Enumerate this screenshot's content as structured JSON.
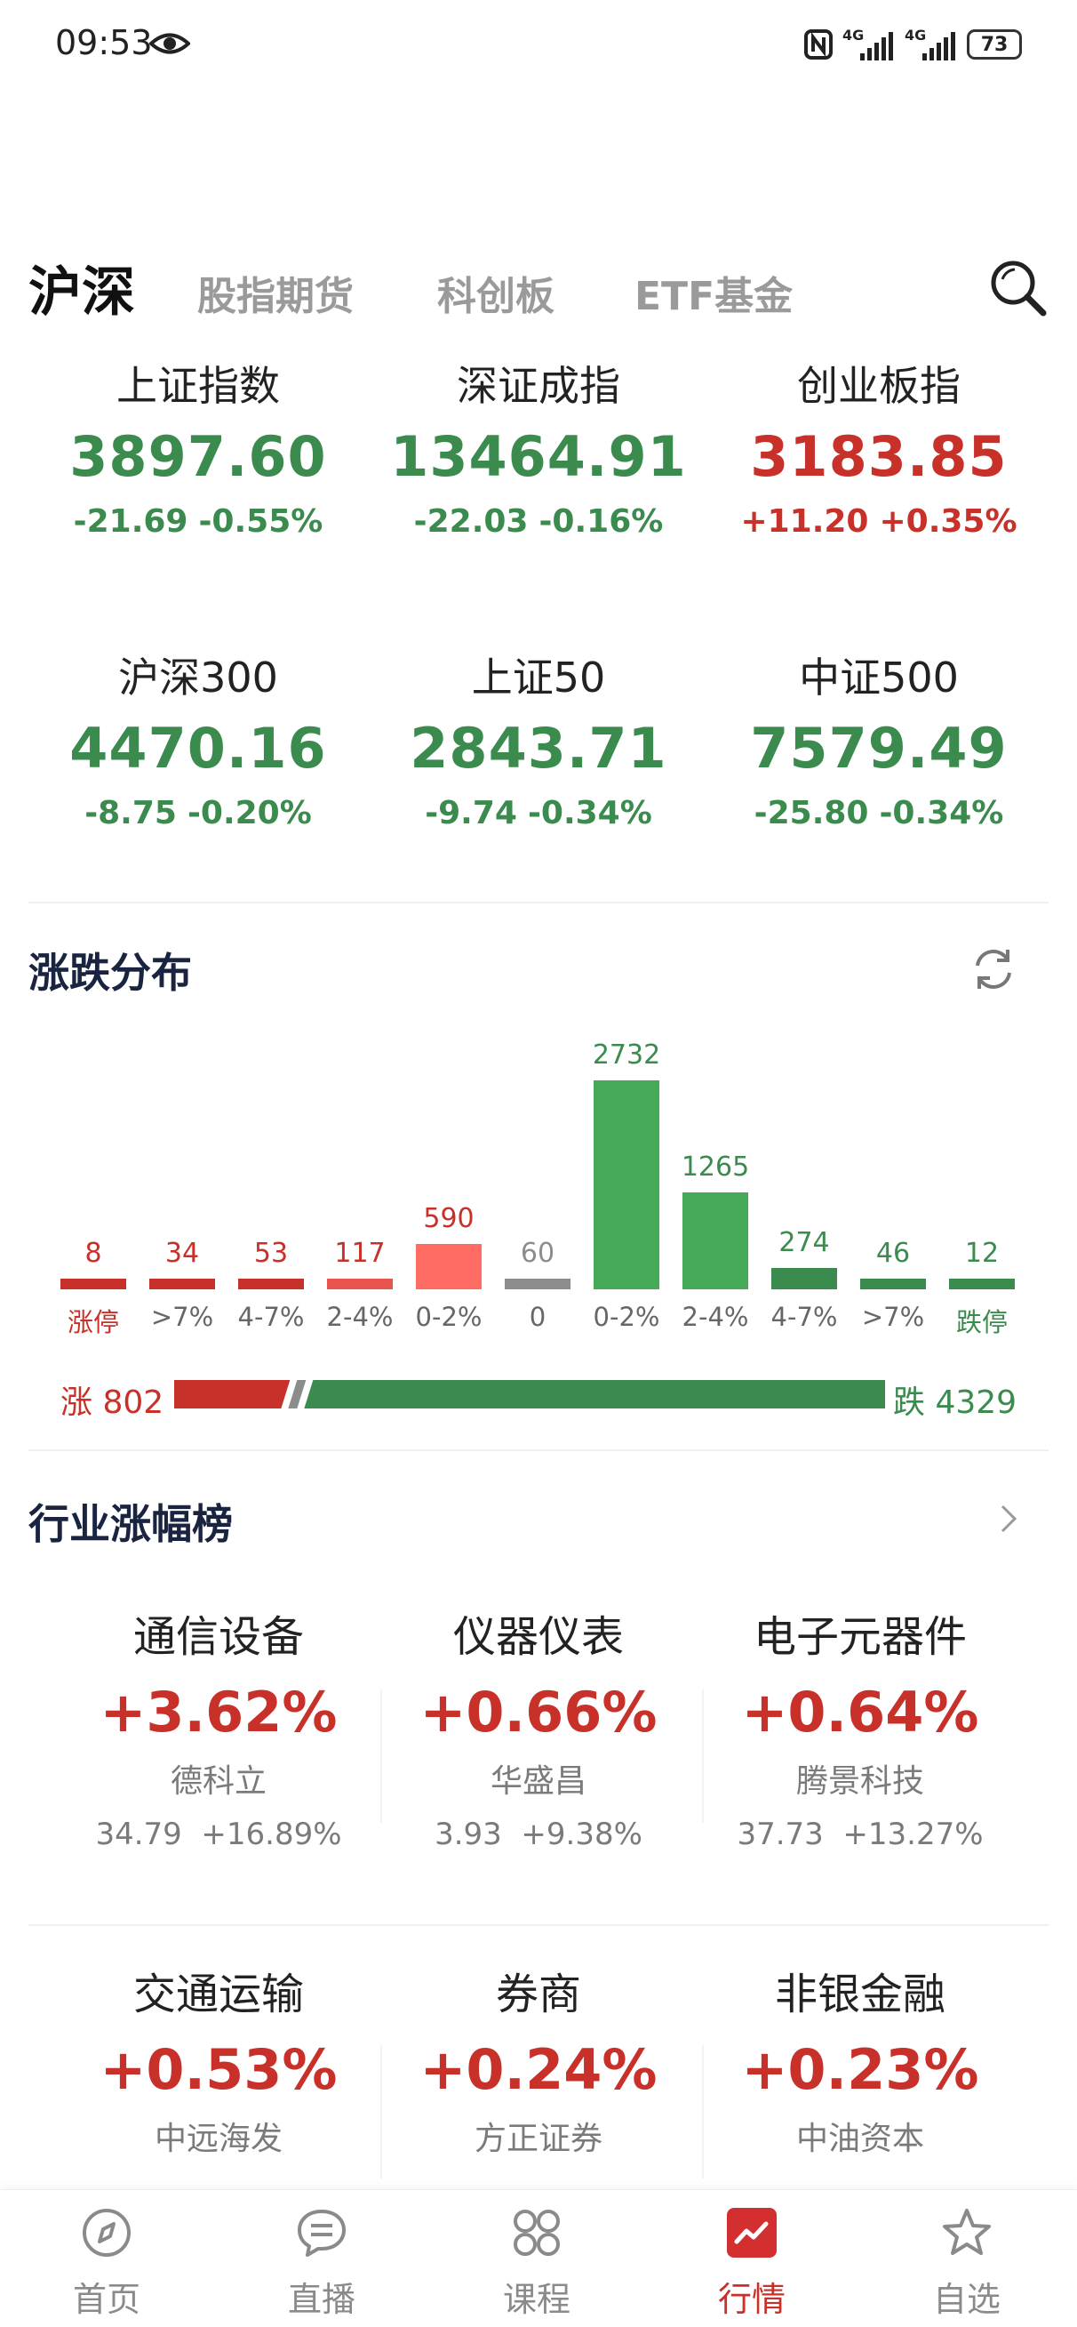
{
  "status": {
    "time": "09:53",
    "signal_1": "4G",
    "signal_2": "4G",
    "battery": "73"
  },
  "tabs": {
    "active": "沪深",
    "others": [
      "股指期货",
      "科创板",
      "ETF基金"
    ]
  },
  "indices": [
    {
      "name": "上证指数",
      "value": "3897.60",
      "change": "-21.69",
      "percent": "-0.55%",
      "trend": "down"
    },
    {
      "name": "深证成指",
      "value": "13464.91",
      "change": "-22.03",
      "percent": "-0.16%",
      "trend": "down"
    },
    {
      "name": "创业板指",
      "value": "3183.85",
      "change": "+11.20",
      "percent": "+0.35%",
      "trend": "up"
    },
    {
      "name": "沪深300",
      "value": "4470.16",
      "change": "-8.75",
      "percent": "-0.20%",
      "trend": "down"
    },
    {
      "name": "上证50",
      "value": "2843.71",
      "change": "-9.74",
      "percent": "-0.34%",
      "trend": "down"
    },
    {
      "name": "中证500",
      "value": "7579.49",
      "change": "-25.80",
      "percent": "-0.34%",
      "trend": "down"
    }
  ],
  "distribution": {
    "title": "涨跌分布",
    "chart_data": {
      "type": "bar",
      "categories": [
        "涨停",
        ">7%",
        "4-7%",
        "2-4%",
        "0-2%",
        "0",
        "0-2%",
        "2-4%",
        "4-7%",
        ">7%",
        "跌停"
      ],
      "values": [
        8,
        34,
        53,
        117,
        590,
        60,
        2732,
        1265,
        274,
        46,
        12
      ],
      "colors": [
        "#c8302a",
        "#c8302a",
        "#c8302a",
        "#e8554e",
        "#fd6b62",
        "#8c8c8c",
        "#46a957",
        "#46a957",
        "#3b8a4e",
        "#3b8a4e",
        "#3b8a4e"
      ]
    },
    "rise_label": "涨 802",
    "fall_label": "跌 4329",
    "rise": 802,
    "fall": 4329
  },
  "industry": {
    "title": "行业涨幅榜",
    "items": [
      {
        "name": "通信设备",
        "pct": "+3.62%",
        "stock": "德科立",
        "price": "34.79",
        "stock_pct": "+16.89%"
      },
      {
        "name": "仪器仪表",
        "pct": "+0.66%",
        "stock": "华盛昌",
        "price": "3.93",
        "stock_pct": "+9.38%"
      },
      {
        "name": "电子元器件",
        "pct": "+0.64%",
        "stock": "腾景科技",
        "price": "37.73",
        "stock_pct": "+13.27%"
      },
      {
        "name": "交通运输",
        "pct": "+0.53%",
        "stock": "中远海发"
      },
      {
        "name": "券商",
        "pct": "+0.24%",
        "stock": "方正证券"
      },
      {
        "name": "非银金融",
        "pct": "+0.23%",
        "stock": "中油资本"
      }
    ]
  },
  "nav": [
    {
      "label": "首页",
      "icon": "compass-icon"
    },
    {
      "label": "直播",
      "icon": "chat-bubble-icon"
    },
    {
      "label": "课程",
      "icon": "grid-icon"
    },
    {
      "label": "行情",
      "icon": "chart-icon",
      "active": true
    },
    {
      "label": "自选",
      "icon": "star-icon"
    }
  ]
}
